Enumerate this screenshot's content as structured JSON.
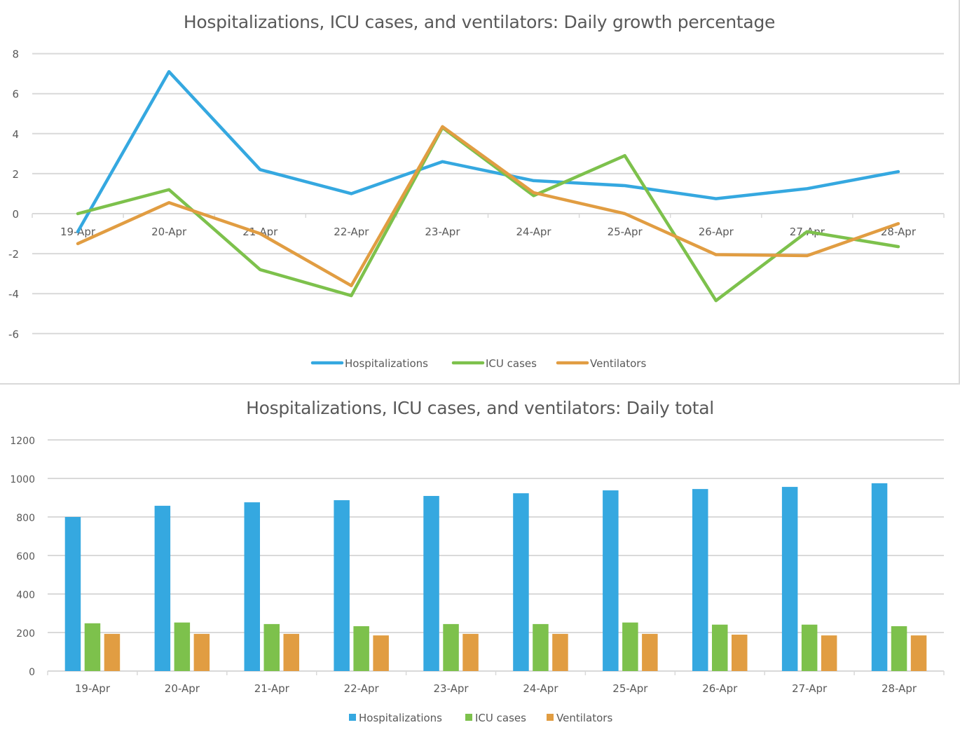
{
  "colors": {
    "Hospitalizations": "#35A8E0",
    "ICU cases": "#7DC14C",
    "Ventilators": "#E19D42",
    "grid": "#d9d9d9",
    "text": "#595959"
  },
  "chart_data": [
    {
      "type": "line",
      "title": "Hospitalizations, ICU cases, and ventilators: Daily growth percentage",
      "xlabel": "",
      "ylabel": "",
      "categories": [
        "19-Apr",
        "20-Apr",
        "21-Apr",
        "22-Apr",
        "23-Apr",
        "24-Apr",
        "25-Apr",
        "26-Apr",
        "27-Apr",
        "28-Apr"
      ],
      "yticks": [
        8,
        6,
        4,
        2,
        0,
        -2,
        -4,
        -6
      ],
      "ylim": [
        -8,
        8
      ],
      "grid": true,
      "legend": "bottom",
      "series": [
        {
          "name": "Hospitalizations",
          "values": [
            -0.9,
            7.1,
            2.2,
            1.0,
            2.6,
            1.65,
            1.4,
            0.75,
            1.25,
            2.1
          ]
        },
        {
          "name": "ICU cases",
          "values": [
            0.0,
            1.2,
            -2.8,
            -4.1,
            4.3,
            0.9,
            2.9,
            -4.35,
            -0.9,
            -1.65
          ]
        },
        {
          "name": "Ventilators",
          "values": [
            -1.5,
            0.55,
            -1.0,
            -3.6,
            4.35,
            1.05,
            0.0,
            -2.05,
            -2.1,
            -0.5
          ]
        }
      ]
    },
    {
      "type": "bar",
      "title": "Hospitalizations, ICU cases, and ventilators: Daily total",
      "xlabel": "",
      "ylabel": "",
      "categories": [
        "19-Apr",
        "20-Apr",
        "21-Apr",
        "22-Apr",
        "23-Apr",
        "24-Apr",
        "25-Apr",
        "26-Apr",
        "27-Apr",
        "28-Apr"
      ],
      "yticks": [
        1200,
        1000,
        800,
        600,
        400,
        200,
        0
      ],
      "ylim": [
        0,
        1200
      ],
      "grid": true,
      "legend": "bottom",
      "series": [
        {
          "name": "Hospitalizations",
          "values": [
            800,
            858,
            876,
            887,
            909,
            923,
            938,
            945,
            956,
            975
          ]
        },
        {
          "name": "ICU cases",
          "values": [
            248,
            252,
            244,
            233,
            244,
            244,
            252,
            241,
            241,
            233
          ]
        },
        {
          "name": "Ventilators",
          "values": [
            193,
            193,
            193,
            185,
            193,
            193,
            193,
            189,
            185,
            185
          ]
        }
      ]
    }
  ]
}
